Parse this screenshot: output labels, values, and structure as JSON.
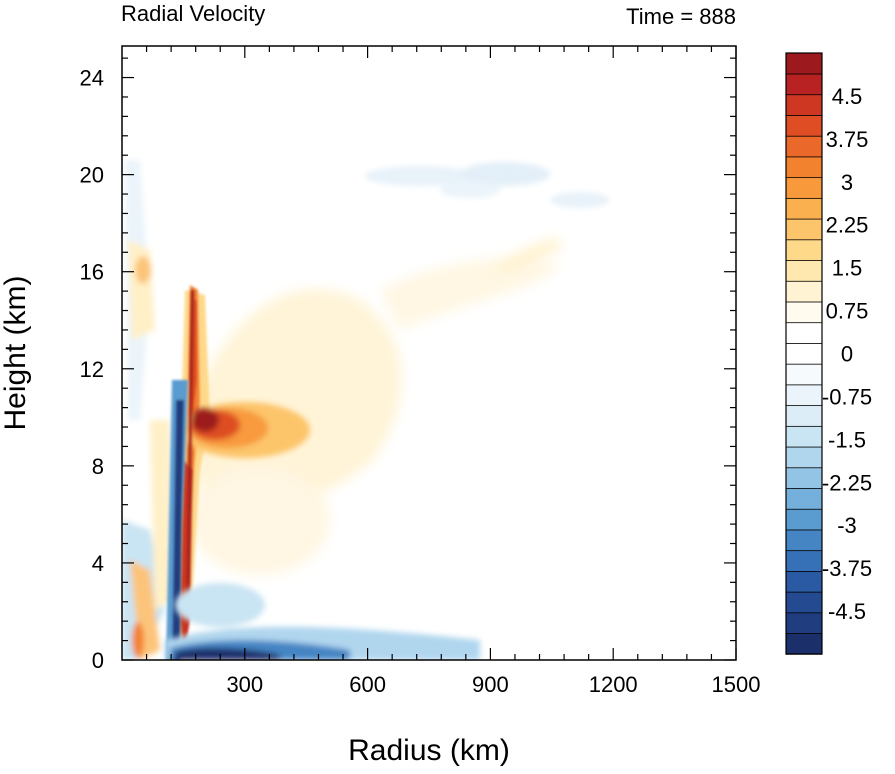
{
  "chart_data": {
    "type": "heatmap",
    "title_left": "Radial Velocity",
    "title_right": "Time = 888",
    "xlabel": "Radius (km)",
    "ylabel": "Height (km)",
    "xlim": [
      0,
      1500
    ],
    "ylim": [
      0,
      25.3
    ],
    "xticks": [
      300,
      600,
      900,
      1200,
      1500
    ],
    "yticks": [
      0,
      4,
      8,
      12,
      16,
      20,
      24
    ],
    "colorbar": {
      "min": -5.25,
      "max": 5.25,
      "step": 0.375,
      "tick_labels": [
        "4.5",
        "3.75",
        "3",
        "2.25",
        "1.5",
        "0.75",
        "0",
        "-0.75",
        "-1.5",
        "-2.25",
        "-3",
        "-3.75",
        "-4.5"
      ],
      "tick_values": [
        4.5,
        3.75,
        3,
        2.25,
        1.5,
        0.75,
        0,
        -0.75,
        -1.5,
        -2.25,
        -3,
        -3.75,
        -4.5
      ],
      "colors": [
        "#1b2f6b",
        "#203d7f",
        "#244a91",
        "#2a5aa3",
        "#3670b7",
        "#4585c4",
        "#5a9bd0",
        "#75b0dc",
        "#93c4e6",
        "#b0d6ee",
        "#c9e4f3",
        "#dcedf7",
        "#ebf4fa",
        "#f7fafc",
        "#ffffff",
        "#ffffff",
        "#fffbee",
        "#fff3d3",
        "#ffe8b0",
        "#fed98a",
        "#fdc56b",
        "#fbb04f",
        "#f89a3c",
        "#f3822f",
        "#ea6829",
        "#de4d24",
        "#ce3722",
        "#b82222",
        "#9c1a1d"
      ]
    },
    "features": [
      {
        "name": "upper outflow (positive)",
        "x_range": [
          180,
          600
        ],
        "z_range": [
          9,
          16
        ],
        "peak_value": 3.0
      },
      {
        "name": "outflow jet core (positive)",
        "x_range": [
          190,
          270
        ],
        "z_range": [
          8.5,
          10
        ],
        "peak_value": 5.25
      },
      {
        "name": "eyewall inflow streak (negative)",
        "x_range": [
          150,
          175
        ],
        "z_range": [
          0,
          11
        ],
        "peak_value": -5.25
      },
      {
        "name": "boundary-layer inflow (negative)",
        "x_range": [
          170,
          500
        ],
        "z_range": [
          0,
          1.2
        ],
        "peak_value": -5.25
      },
      {
        "name": "upper-level inflow (negative)",
        "x_range": [
          620,
          1000
        ],
        "z_range": [
          19.5,
          21
        ],
        "peak_value": -0.75
      }
    ]
  }
}
